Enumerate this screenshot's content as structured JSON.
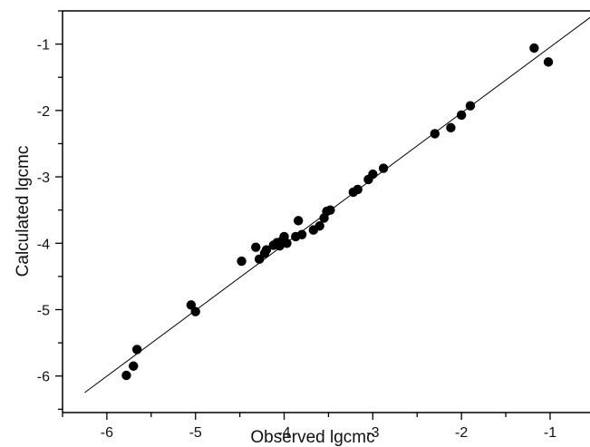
{
  "chart_data": {
    "type": "scatter",
    "title": "",
    "xlabel": "Observed lgcmc",
    "ylabel": "Calculated lgcmc",
    "xlim": [
      -6.5,
      -0.55
    ],
    "ylim": [
      -6.55,
      -0.5
    ],
    "xticks": [
      -6,
      -5,
      -4,
      -3,
      -2,
      -1
    ],
    "yticks": [
      -6,
      -5,
      -4,
      -3,
      -2,
      -1
    ],
    "xtick_labels": [
      "-6",
      "-5",
      "-4",
      "-3",
      "-2",
      "-1"
    ],
    "ytick_labels": [
      "-6",
      "-5",
      "-4",
      "-3",
      "-2",
      "-1"
    ],
    "grid": false,
    "fit_line": {
      "x": [
        -6.25,
        -0.55
      ],
      "y": [
        -6.25,
        -0.6
      ]
    },
    "series": [
      {
        "points": [
          [
            -5.78,
            -5.99
          ],
          [
            -5.7,
            -5.85
          ],
          [
            -5.66,
            -5.6
          ],
          [
            -5.05,
            -4.93
          ],
          [
            -5.0,
            -5.03
          ],
          [
            -4.48,
            -4.27
          ],
          [
            -4.32,
            -4.06
          ],
          [
            -4.28,
            -4.24
          ],
          [
            -4.22,
            -4.15
          ],
          [
            -4.2,
            -4.1
          ],
          [
            -4.12,
            -4.03
          ],
          [
            -4.08,
            -3.99
          ],
          [
            -4.05,
            -4.04
          ],
          [
            -4.02,
            -3.96
          ],
          [
            -4.0,
            -3.9
          ],
          [
            -3.97,
            -4.0
          ],
          [
            -3.87,
            -3.9
          ],
          [
            -3.84,
            -3.66
          ],
          [
            -3.8,
            -3.87
          ],
          [
            -3.67,
            -3.8
          ],
          [
            -3.6,
            -3.74
          ],
          [
            -3.55,
            -3.62
          ],
          [
            -3.52,
            -3.52
          ],
          [
            -3.48,
            -3.5
          ],
          [
            -3.22,
            -3.23
          ],
          [
            -3.17,
            -3.19
          ],
          [
            -3.05,
            -3.04
          ],
          [
            -3.0,
            -2.96
          ],
          [
            -2.88,
            -2.87
          ],
          [
            -2.3,
            -2.35
          ],
          [
            -2.12,
            -2.26
          ],
          [
            -2.0,
            -2.07
          ],
          [
            -1.9,
            -1.93
          ],
          [
            -1.18,
            -1.06
          ],
          [
            -1.02,
            -1.27
          ]
        ]
      }
    ]
  }
}
